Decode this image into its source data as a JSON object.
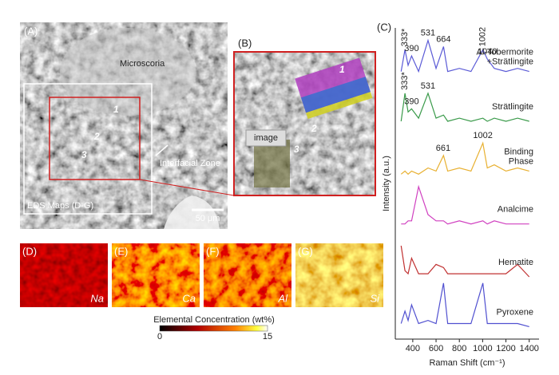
{
  "figure": {
    "panel_a": {
      "label": "(A)",
      "region": "Microscoria",
      "points": [
        "1",
        "2",
        "3"
      ],
      "zone": "Interfacial Zone",
      "box": "EDS Maps (D-G)",
      "scale": "50 μm"
    },
    "panel_b": {
      "label": "(B)",
      "points": [
        "1",
        "2",
        "3"
      ],
      "tag": "image"
    },
    "panel_c": {
      "label": "(C)"
    },
    "maps": [
      {
        "label": "(D)",
        "element": "Na"
      },
      {
        "label": "(E)",
        "element": "Ca"
      },
      {
        "label": "(F)",
        "element": "Al"
      },
      {
        "label": "(G)",
        "element": "Si"
      }
    ],
    "colorbar": {
      "title": "Elemental Concentration (wt%)",
      "min": "0",
      "max": "15"
    }
  },
  "chart_data": {
    "type": "line",
    "xlabel": "Raman Shift (cm⁻¹)",
    "ylabel": "Intensity (a.u.)",
    "x": [
      300,
      333,
      360,
      390,
      450,
      531,
      600,
      664,
      700,
      800,
      900,
      1002,
      1040,
      1100,
      1200,
      1300,
      1400
    ],
    "xlim": [
      250,
      1450
    ],
    "xticks": [
      400,
      600,
      800,
      1000,
      1200,
      1400
    ],
    "ylim": [
      0,
      100
    ],
    "series": [
      {
        "name": "Al-Tobermorite +Strätlingite",
        "color": "#5a5ad6",
        "values": [
          86,
          93,
          88,
          91,
          86,
          96,
          87,
          94,
          86,
          87,
          86,
          93,
          90,
          87,
          86,
          87,
          86
        ],
        "peaks": [
          {
            "value": 333,
            "label": "333*"
          },
          390,
          531,
          664,
          1002,
          1040
        ]
      },
      {
        "name": "Strätlingite",
        "color": "#3a9a4a",
        "values": [
          70,
          79,
          73,
          74,
          71,
          79,
          71,
          72,
          70,
          71,
          70,
          71,
          70,
          71,
          70,
          71,
          70
        ],
        "peaks": [
          {
            "value": 333,
            "label": "333*"
          },
          390,
          531
        ]
      },
      {
        "name": "Binding Phase",
        "color": "#e8b030",
        "values": [
          53,
          54,
          53,
          54,
          53,
          55,
          54,
          59,
          54,
          55,
          54,
          63,
          55,
          56,
          54,
          55,
          54
        ],
        "peaks": [
          661,
          1002
        ]
      },
      {
        "name": "Analcime",
        "color": "#d040c0",
        "values": [
          37,
          37,
          38,
          38,
          49,
          40,
          38,
          38,
          37,
          38,
          37,
          38,
          37,
          38,
          37,
          37,
          37
        ],
        "peaks": []
      },
      {
        "name": "Hematite",
        "color": "#c03030",
        "values": [
          30,
          22,
          21,
          26,
          21,
          21,
          24,
          23,
          21,
          21,
          21,
          21,
          21,
          21,
          21,
          24,
          20
        ],
        "peaks": []
      },
      {
        "name": "Pyroxene",
        "color": "#5050d0",
        "values": [
          5,
          9,
          6,
          11,
          5,
          6,
          5,
          18,
          5,
          5,
          5,
          18,
          5,
          5,
          5,
          5,
          4
        ],
        "peaks": []
      }
    ]
  }
}
